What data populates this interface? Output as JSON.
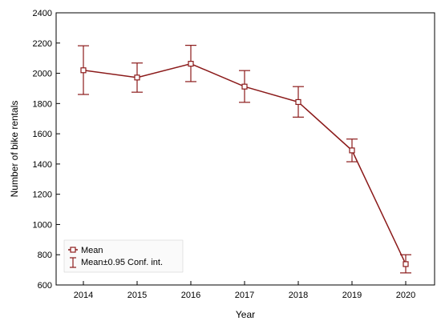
{
  "chart_data": {
    "type": "line",
    "title": "",
    "xlabel": "Year",
    "ylabel": "Number of bike rentals",
    "categories": [
      "2014",
      "2015",
      "2016",
      "2017",
      "2018",
      "2019",
      "2020"
    ],
    "series": [
      {
        "name": "Mean",
        "values": [
          2020,
          1972,
          2063,
          1912,
          1810,
          1490,
          738
        ],
        "ci_lower": [
          1860,
          1875,
          1945,
          1808,
          1710,
          1415,
          680
        ],
        "ci_upper": [
          2182,
          2068,
          2185,
          2018,
          1912,
          1565,
          800
        ]
      }
    ],
    "error_bar_label": "Mean±0.95 Conf. int.",
    "ylim": [
      600,
      2400
    ],
    "yticks": [
      600,
      800,
      1000,
      1200,
      1400,
      1600,
      1800,
      2000,
      2200,
      2400
    ],
    "grid": false,
    "legend_position": "bottom-left",
    "color": "#8b1a1a"
  }
}
